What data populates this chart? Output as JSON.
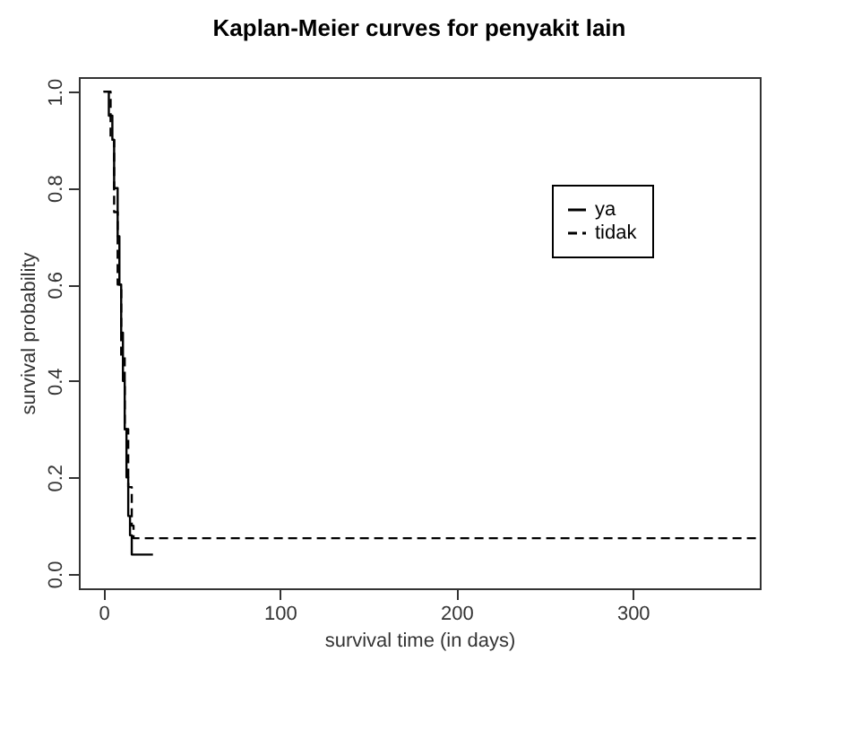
{
  "chart_data": {
    "type": "step",
    "title": "Kaplan-Meier curves for penyakit lain",
    "xlabel": "survival time (in days)",
    "ylabel": "survival probability",
    "xlim": [
      -14,
      372
    ],
    "xticks": [
      0,
      100,
      200,
      300
    ],
    "ylim": [
      -0.03,
      1.03
    ],
    "yticks": [
      {
        "value": 0,
        "label": "0.0"
      },
      0.2,
      0.4,
      0.6,
      0.8,
      {
        "value": 1,
        "label": "1.0"
      }
    ],
    "grid": false,
    "legend": "top right",
    "series": [
      {
        "name": "ya",
        "color": "#000000",
        "line_style": "solid",
        "x": [
          0,
          3,
          5,
          6,
          8,
          9,
          10,
          11,
          12,
          13,
          14,
          15,
          16,
          28
        ],
        "values": [
          1,
          0.95,
          0.9,
          0.8,
          0.7,
          0.6,
          0.5,
          0.4,
          0.3,
          0.2,
          0.12,
          0.08,
          0.04,
          0.04
        ]
      },
      {
        "name": "tidak",
        "color": "#000000",
        "line_style": "dashed",
        "x": [
          0,
          4,
          6,
          8,
          10,
          12,
          14,
          16,
          17,
          370
        ],
        "values": [
          1,
          0.9,
          0.75,
          0.6,
          0.45,
          0.3,
          0.18,
          0.1,
          0.074,
          0.074
        ]
      }
    ]
  }
}
